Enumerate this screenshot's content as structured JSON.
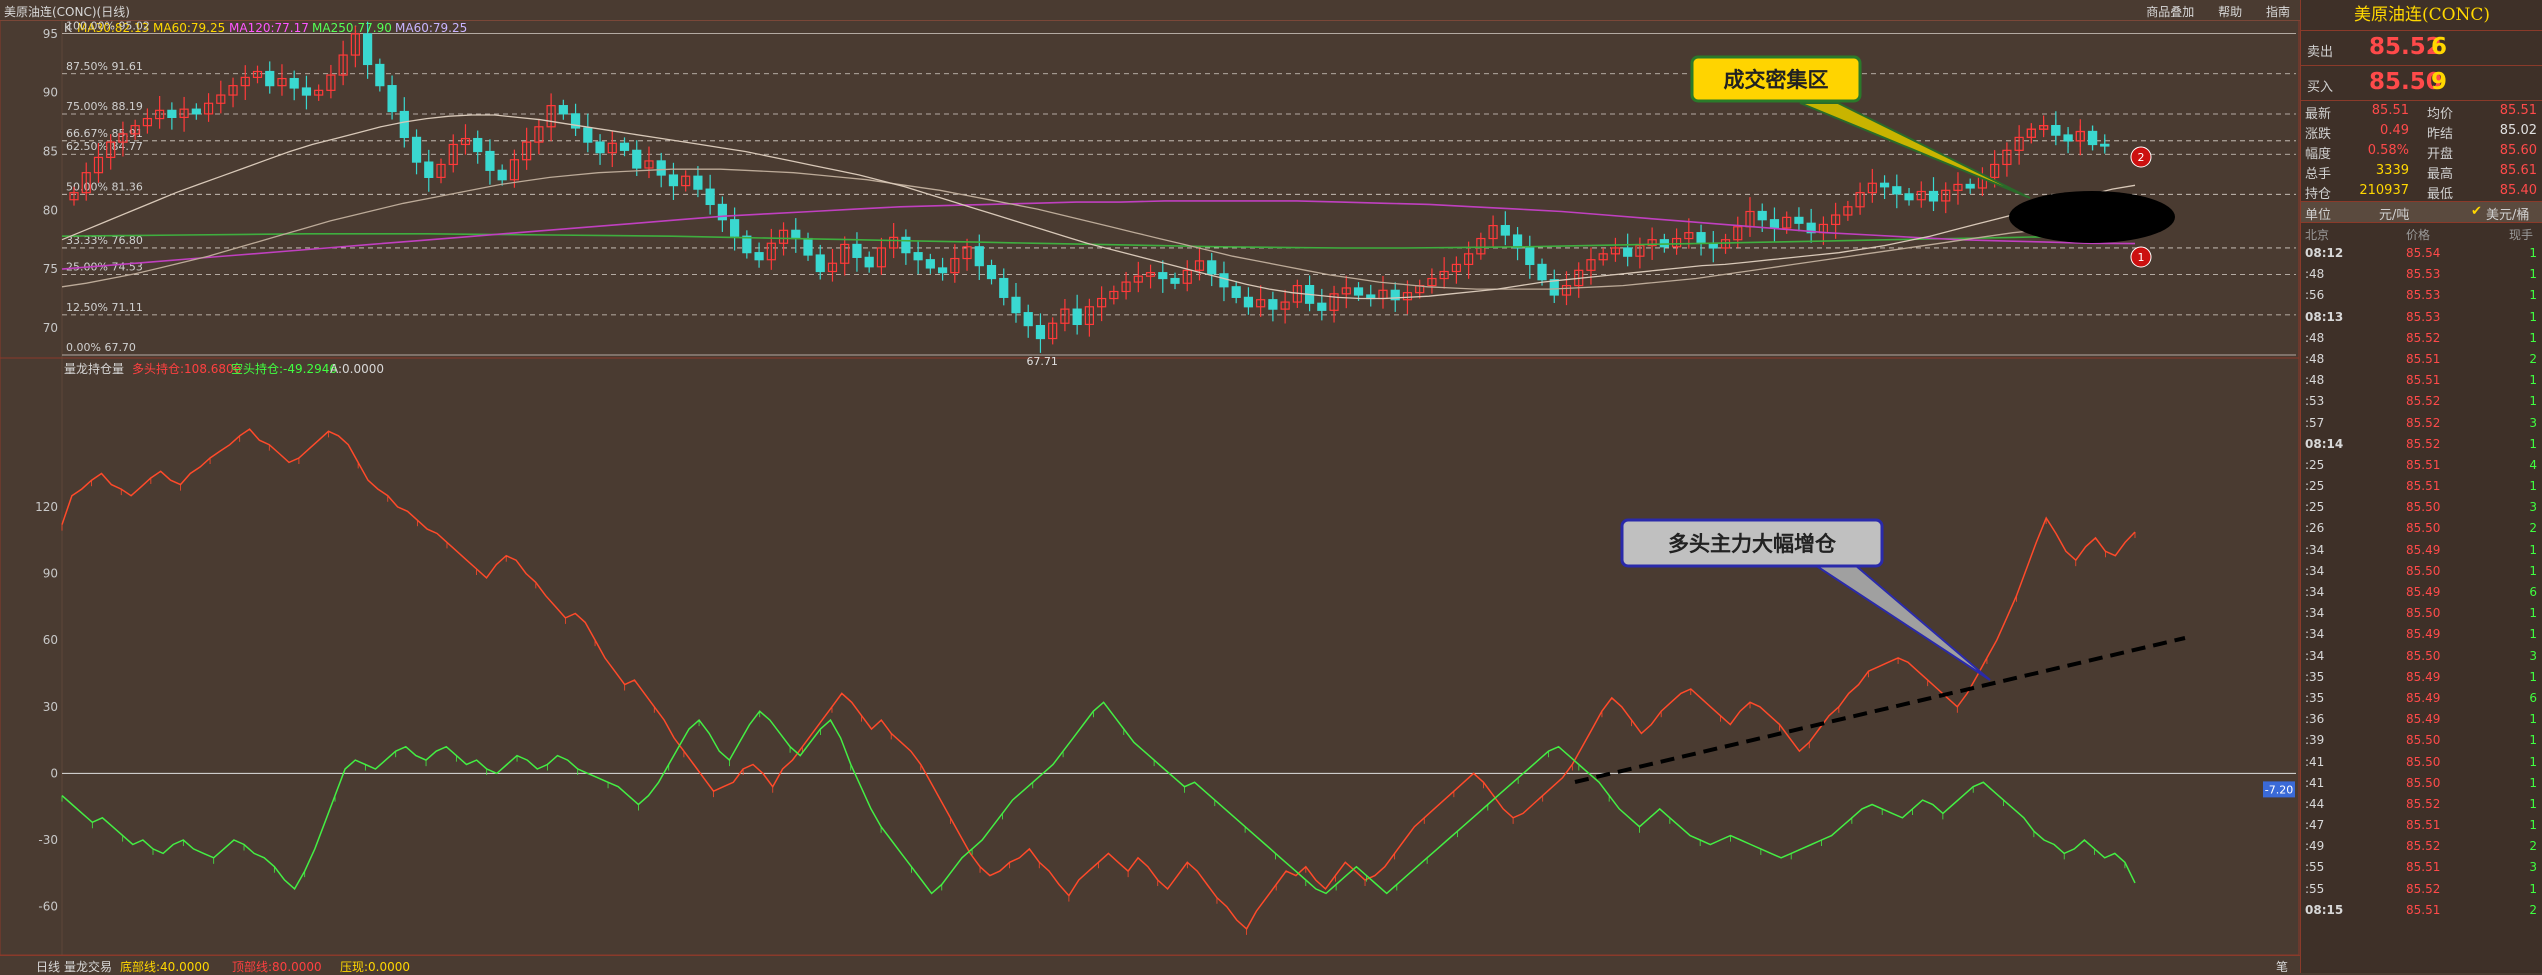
{
  "window_title": "美原油连(CONC)(日线)",
  "toolbar": {
    "b1": "商品叠加",
    "b2": "帮助",
    "b3": "指南"
  },
  "ma_legend": [
    {
      "text": "K",
      "color": "#d8d8d8"
    },
    {
      "text": "MA30:82.13",
      "color": "#ffd700"
    },
    {
      "text": "MA60:79.25",
      "color": "#ffd700"
    },
    {
      "text": "MA120:77.17",
      "color": "#ff55ff"
    },
    {
      "text": "MA250:77.90",
      "color": "#55ff55"
    },
    {
      "text": "MA60:79.25",
      "color": "#c8b4ff"
    }
  ],
  "ind_legend": [
    {
      "text": "量龙持仓量",
      "color": "#d8d8d8"
    },
    {
      "text": "多头持仓:108.6806",
      "color": "#ff4040"
    },
    {
      "text": "空头持仓:-49.2946",
      "color": "#40ff40"
    },
    {
      "text": "A:0.0000",
      "color": "#d8d8d8"
    }
  ],
  "bottom": {
    "tab": "日线",
    "l1": "量龙交易",
    "l2": "底部线:40.0000",
    "l3": "顶部线:80.0000",
    "l4": "压现:0.0000",
    "r": "笔"
  },
  "annotations": {
    "a1": "成交密集区",
    "a2": "多头主力大幅增仓",
    "m1": "1",
    "m2": "2",
    "cur": "-7.20"
  },
  "colors": {
    "up": "#ff3a3a",
    "down": "#3ad8d0",
    "long": "#ff4a2a",
    "short": "#44ee44"
  },
  "chart_data": {
    "type": "candlestick",
    "price_axis": {
      "ylim": [
        67.7,
        95.5
      ],
      "ticks": [
        95,
        90,
        85,
        80,
        75,
        70
      ]
    },
    "fib_levels": [
      {
        "pct": "100.00%",
        "val": "95.02",
        "v": 95.02
      },
      {
        "pct": "87.50%",
        "val": "91.61",
        "v": 91.61
      },
      {
        "pct": "75.00%",
        "val": "88.19",
        "v": 88.19
      },
      {
        "pct": "66.67%",
        "val": "85.91",
        "v": 85.91
      },
      {
        "pct": "62.50%",
        "val": "84.77",
        "v": 84.77
      },
      {
        "pct": "50.00%",
        "val": "81.36",
        "v": 81.36
      },
      {
        "pct": "33.33%",
        "val": "76.80",
        "v": 76.8
      },
      {
        "pct": "25.00%",
        "val": "74.53",
        "v": 74.53
      },
      {
        "pct": "12.50%",
        "val": "71.11",
        "v": 71.11
      },
      {
        "pct": "0.00%",
        "val": "67.70",
        "v": 67.7
      }
    ],
    "high_label": "95.03",
    "low_label": "67.71",
    "closes": [
      81.5,
      83.2,
      84.5,
      85.8,
      86.5,
      87.2,
      87.8,
      88.5,
      87.9,
      88.6,
      88.2,
      89.1,
      89.8,
      90.6,
      91.3,
      91.8,
      90.6,
      91.2,
      90.4,
      89.8,
      90.2,
      91.5,
      93.2,
      95.0,
      92.4,
      90.6,
      88.4,
      86.2,
      84.1,
      82.8,
      83.9,
      85.6,
      86.1,
      85.0,
      83.4,
      82.6,
      84.3,
      85.8,
      87.1,
      88.9,
      88.2,
      87.0,
      85.8,
      84.9,
      85.7,
      85.1,
      83.6,
      84.2,
      83.0,
      82.1,
      82.9,
      81.8,
      80.5,
      79.2,
      77.8,
      76.4,
      75.8,
      77.2,
      78.3,
      77.6,
      76.2,
      74.8,
      75.5,
      77.1,
      76.0,
      75.2,
      76.8,
      77.7,
      76.4,
      75.8,
      75.1,
      74.7,
      75.9,
      76.9,
      75.3,
      74.2,
      72.6,
      71.3,
      70.2,
      69.1,
      70.4,
      71.6,
      70.3,
      71.8,
      72.5,
      73.1,
      73.9,
      74.4,
      74.7,
      74.2,
      73.8,
      74.9,
      75.7,
      74.6,
      73.5,
      72.6,
      71.8,
      72.4,
      71.6,
      72.2,
      73.6,
      72.1,
      71.5,
      72.9,
      73.4,
      72.8,
      72.5,
      73.2,
      72.4,
      73.0,
      73.6,
      74.2,
      74.8,
      75.4,
      76.3,
      77.6,
      78.7,
      77.9,
      76.8,
      75.4,
      74.1,
      72.8,
      73.6,
      74.9,
      75.8,
      76.3,
      76.8,
      76.1,
      77.0,
      77.5,
      76.9,
      77.6,
      78.1,
      77.2,
      76.8,
      77.5,
      78.6,
      79.9,
      79.2,
      78.5,
      79.4,
      78.9,
      78.1,
      78.8,
      79.6,
      80.3,
      81.5,
      82.3,
      82.0,
      81.4,
      80.9,
      81.6,
      80.8,
      81.7,
      82.2,
      81.9,
      82.8,
      83.9,
      85.1,
      86.2,
      86.9,
      87.2,
      86.4,
      85.9,
      86.7,
      85.6,
      85.5
    ],
    "ma30": [
      77.5,
      78.3,
      79.1,
      79.9,
      80.7,
      81.5,
      82.2,
      82.9,
      83.6,
      84.3,
      85.0,
      85.6,
      86.1,
      86.6,
      87.1,
      87.5,
      87.8,
      88.0,
      88.1,
      88.1,
      87.9,
      87.7,
      87.4,
      87.1,
      86.8,
      86.5,
      86.2,
      85.9,
      85.6,
      85.3,
      85.0,
      84.6,
      84.2,
      83.8,
      83.4,
      83.0,
      82.5,
      82.0,
      81.4,
      80.8,
      80.2,
      79.6,
      79.0,
      78.4,
      77.8,
      77.2,
      76.7,
      76.2,
      75.7,
      75.2,
      74.7,
      74.2,
      73.7,
      73.3,
      73.0,
      72.8,
      72.6,
      72.5,
      72.5,
      72.6,
      72.7,
      72.9,
      73.1,
      73.3,
      73.6,
      73.9,
      74.1,
      74.3,
      74.5,
      74.7,
      74.9,
      75.1,
      75.3,
      75.4,
      75.6,
      75.8,
      76.0,
      76.2,
      76.4,
      76.7,
      77.0,
      77.4,
      77.8,
      78.3,
      78.8,
      79.3,
      79.8,
      80.3,
      80.8,
      81.3,
      81.8,
      82.13
    ],
    "ma60": [
      73.5,
      73.8,
      74.2,
      74.6,
      75.1,
      75.6,
      76.1,
      76.7,
      77.3,
      77.9,
      78.5,
      79.1,
      79.6,
      80.1,
      80.6,
      81.0,
      81.4,
      81.8,
      82.2,
      82.5,
      82.8,
      83.0,
      83.2,
      83.3,
      83.4,
      83.5,
      83.5,
      83.5,
      83.4,
      83.3,
      83.2,
      83.0,
      82.8,
      82.6,
      82.3,
      82.0,
      81.7,
      81.3,
      80.9,
      80.5,
      80.1,
      79.6,
      79.1,
      78.6,
      78.1,
      77.6,
      77.1,
      76.6,
      76.1,
      75.7,
      75.3,
      74.9,
      74.5,
      74.2,
      73.9,
      73.7,
      73.5,
      73.4,
      73.3,
      73.3,
      73.3,
      73.3,
      73.4,
      73.5,
      73.6,
      73.8,
      74.0,
      74.2,
      74.5,
      74.8,
      75.1,
      75.4,
      75.7,
      76.0,
      76.3,
      76.6,
      76.9,
      77.2,
      77.5,
      77.8,
      78.1,
      78.3,
      78.5,
      78.7,
      78.9,
      79.25
    ],
    "ma120": [
      75.0,
      75.3,
      75.6,
      75.9,
      76.2,
      76.5,
      76.8,
      77.1,
      77.4,
      77.7,
      78.0,
      78.3,
      78.6,
      78.9,
      79.2,
      79.5,
      79.7,
      79.9,
      80.1,
      80.3,
      80.4,
      80.5,
      80.6,
      80.7,
      80.7,
      80.8,
      80.8,
      80.8,
      80.8,
      80.7,
      80.6,
      80.5,
      80.3,
      80.1,
      79.9,
      79.6,
      79.3,
      79.0,
      78.7,
      78.4,
      78.1,
      77.9,
      77.7,
      77.5,
      77.4,
      77.3,
      77.2,
      77.17
    ],
    "ma250": [
      77.8,
      77.85,
      77.9,
      77.95,
      78.0,
      78.0,
      78.0,
      77.95,
      77.9,
      77.85,
      77.8,
      77.7,
      77.6,
      77.5,
      77.4,
      77.3,
      77.2,
      77.1,
      77.0,
      76.9,
      76.85,
      76.8,
      76.8,
      76.85,
      76.9,
      77.0,
      77.1,
      77.2,
      77.3,
      77.4,
      77.5,
      77.6,
      77.7,
      77.8,
      77.9
    ],
    "long": [
      112,
      125,
      128,
      132,
      135,
      130,
      128,
      125,
      129,
      133,
      136,
      132,
      130,
      135,
      138,
      142,
      145,
      148,
      152,
      155,
      150,
      148,
      144,
      140,
      142,
      146,
      150,
      154,
      152,
      148,
      140,
      132,
      128,
      125,
      120,
      118,
      114,
      110,
      108,
      104,
      100,
      96,
      92,
      88,
      94,
      98,
      96,
      90,
      86,
      80,
      75,
      70,
      72,
      68,
      60,
      52,
      46,
      40,
      42,
      36,
      30,
      24,
      16,
      10,
      4,
      -2,
      -8,
      -6,
      -4,
      2,
      4,
      0,
      -6,
      2,
      6,
      12,
      18,
      24,
      30,
      36,
      32,
      26,
      20,
      24,
      18,
      14,
      10,
      4,
      -4,
      -12,
      -20,
      -28,
      -36,
      -42,
      -46,
      -44,
      -40,
      -38,
      -34,
      -40,
      -44,
      -50,
      -55,
      -48,
      -44,
      -40,
      -36,
      -40,
      -44,
      -38,
      -42,
      -48,
      -52,
      -46,
      -40,
      -44,
      -50,
      -56,
      -60,
      -66,
      -70,
      -62,
      -56,
      -50,
      -44,
      -46,
      -42,
      -48,
      -52,
      -46,
      -40,
      -44,
      -48,
      -46,
      -42,
      -36,
      -30,
      -24,
      -20,
      -16,
      -12,
      -8,
      -4,
      0,
      -4,
      -10,
      -16,
      -20,
      -18,
      -14,
      -10,
      -6,
      -2,
      4,
      12,
      20,
      28,
      34,
      30,
      24,
      18,
      22,
      28,
      32,
      36,
      38,
      34,
      30,
      26,
      22,
      28,
      32,
      30,
      26,
      22,
      16,
      10,
      14,
      20,
      26,
      30,
      36,
      40,
      46,
      48,
      50,
      52,
      50,
      46,
      42,
      38,
      34,
      30,
      36,
      44,
      52,
      60,
      70,
      80,
      92,
      104,
      115,
      108,
      100,
      96,
      102,
      106,
      100,
      98,
      104,
      108.68
    ],
    "short": [
      -10,
      -14,
      -18,
      -22,
      -20,
      -24,
      -28,
      -32,
      -30,
      -34,
      -36,
      -32,
      -30,
      -34,
      -36,
      -38,
      -34,
      -30,
      -32,
      -36,
      -38,
      -42,
      -48,
      -52,
      -44,
      -34,
      -22,
      -10,
      2,
      6,
      4,
      2,
      6,
      10,
      12,
      8,
      6,
      10,
      12,
      8,
      4,
      6,
      2,
      0,
      4,
      8,
      6,
      2,
      4,
      8,
      6,
      2,
      0,
      -2,
      -4,
      -6,
      -10,
      -14,
      -10,
      -4,
      4,
      12,
      20,
      24,
      18,
      10,
      6,
      14,
      22,
      28,
      24,
      18,
      12,
      8,
      14,
      20,
      24,
      16,
      4,
      -6,
      -16,
      -24,
      -30,
      -36,
      -42,
      -48,
      -54,
      -50,
      -44,
      -38,
      -34,
      -30,
      -24,
      -18,
      -12,
      -8,
      -4,
      0,
      4,
      10,
      16,
      22,
      28,
      32,
      26,
      20,
      14,
      10,
      6,
      2,
      -2,
      -6,
      -4,
      -8,
      -12,
      -16,
      -20,
      -24,
      -28,
      -32,
      -36,
      -40,
      -44,
      -48,
      -52,
      -54,
      -50,
      -46,
      -42,
      -46,
      -50,
      -54,
      -50,
      -46,
      -42,
      -38,
      -34,
      -30,
      -26,
      -22,
      -18,
      -14,
      -10,
      -6,
      -2,
      2,
      6,
      10,
      12,
      8,
      4,
      0,
      -4,
      -10,
      -16,
      -20,
      -24,
      -20,
      -16,
      -20,
      -24,
      -28,
      -30,
      -32,
      -30,
      -28,
      -30,
      -32,
      -34,
      -36,
      -38,
      -36,
      -34,
      -32,
      -30,
      -28,
      -24,
      -20,
      -16,
      -14,
      -16,
      -18,
      -20,
      -16,
      -12,
      -14,
      -18,
      -14,
      -10,
      -6,
      -4,
      -8,
      -12,
      -16,
      -20,
      -26,
      -30,
      -32,
      -36,
      -34,
      -30,
      -34,
      -38,
      -36,
      -40,
      -49.29
    ],
    "ind_axis": {
      "ylim": [
        -75,
        160
      ],
      "ticks": [
        120,
        90,
        60,
        30,
        0,
        -30,
        -60
      ]
    }
  },
  "quote": {
    "title": "美原油连(CONC)",
    "sell_label": "卖出",
    "sell_price": "85.52",
    "sell_vol": "6",
    "buy_label": "买入",
    "buy_price": "85.50",
    "buy_vol": "9",
    "rows": [
      {
        "l1": "最新",
        "v1": "85.51",
        "l2": "均价",
        "v2": "85.51",
        "c1": "#ff4a4a",
        "c2": "#ff4a4a"
      },
      {
        "l1": "涨跌",
        "v1": "0.49",
        "l2": "昨结",
        "v2": "85.02",
        "c1": "#ff4a4a",
        "c2": "#e0e0e0"
      },
      {
        "l1": "幅度",
        "v1": "0.58%",
        "l2": "开盘",
        "v2": "85.60",
        "c1": "#ff4a4a",
        "c2": "#ff4a4a"
      },
      {
        "l1": "总手",
        "v1": "3339",
        "l2": "最高",
        "v2": "85.61",
        "c1": "#ffd700",
        "c2": "#ff4a4a"
      },
      {
        "l1": "持仓",
        "v1": "210937",
        "l2": "最低",
        "v2": "85.40",
        "c1": "#ffd700",
        "c2": "#ff4a4a"
      }
    ],
    "unit_label": "单位",
    "unit_value": "元/吨",
    "unit_check": "✔",
    "unit_alt": "美元/桶",
    "tick_header": {
      "c1": "北京",
      "c2": "价格",
      "c3": "现手"
    },
    "ticks": [
      {
        "t": "08:12",
        "p": "85.54",
        "v": "1",
        "bold": true
      },
      {
        "t": ":48",
        "p": "85.53",
        "v": "1"
      },
      {
        "t": ":56",
        "p": "85.53",
        "v": "1"
      },
      {
        "t": "08:13",
        "p": "85.53",
        "v": "1",
        "bold": true
      },
      {
        "t": ":48",
        "p": "85.52",
        "v": "1"
      },
      {
        "t": ":48",
        "p": "85.51",
        "v": "2"
      },
      {
        "t": ":48",
        "p": "85.51",
        "v": "1"
      },
      {
        "t": ":53",
        "p": "85.52",
        "v": "1"
      },
      {
        "t": ":57",
        "p": "85.52",
        "v": "3"
      },
      {
        "t": "08:14",
        "p": "85.52",
        "v": "1",
        "bold": true
      },
      {
        "t": ":25",
        "p": "85.51",
        "v": "4"
      },
      {
        "t": ":25",
        "p": "85.51",
        "v": "1"
      },
      {
        "t": ":25",
        "p": "85.50",
        "v": "3"
      },
      {
        "t": ":26",
        "p": "85.50",
        "v": "2"
      },
      {
        "t": ":34",
        "p": "85.49",
        "v": "1"
      },
      {
        "t": ":34",
        "p": "85.50",
        "v": "1"
      },
      {
        "t": ":34",
        "p": "85.49",
        "v": "6"
      },
      {
        "t": ":34",
        "p": "85.50",
        "v": "1"
      },
      {
        "t": ":34",
        "p": "85.49",
        "v": "1"
      },
      {
        "t": ":34",
        "p": "85.50",
        "v": "3"
      },
      {
        "t": ":35",
        "p": "85.49",
        "v": "1"
      },
      {
        "t": ":35",
        "p": "85.49",
        "v": "6"
      },
      {
        "t": ":36",
        "p": "85.49",
        "v": "1"
      },
      {
        "t": ":39",
        "p": "85.50",
        "v": "1"
      },
      {
        "t": ":41",
        "p": "85.50",
        "v": "1"
      },
      {
        "t": ":41",
        "p": "85.50",
        "v": "1"
      },
      {
        "t": ":44",
        "p": "85.52",
        "v": "1"
      },
      {
        "t": ":47",
        "p": "85.51",
        "v": "1"
      },
      {
        "t": ":49",
        "p": "85.52",
        "v": "2"
      },
      {
        "t": ":55",
        "p": "85.51",
        "v": "3"
      },
      {
        "t": ":55",
        "p": "85.52",
        "v": "1"
      },
      {
        "t": "08:15",
        "p": "85.51",
        "v": "2",
        "bold": true
      }
    ]
  }
}
